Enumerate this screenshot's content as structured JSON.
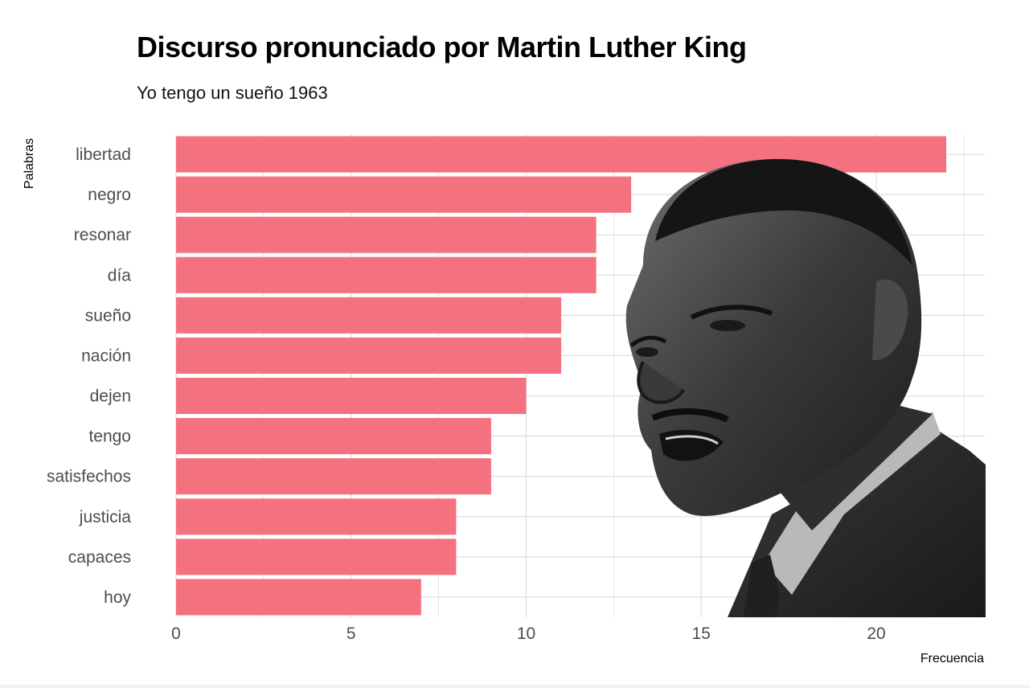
{
  "chart_data": {
    "type": "bar",
    "orientation": "horizontal",
    "title": "Discurso pronunciado por Martin Luther King",
    "subtitle": "Yo tengo un sueño 1963",
    "xlabel": "Frecuencia",
    "ylabel": "Palabras",
    "categories": [
      "libertad",
      "negro",
      "resonar",
      "día",
      "sueño",
      "nación",
      "dejen",
      "tengo",
      "satisfechos",
      "justicia",
      "capaces",
      "hoy"
    ],
    "values": [
      22,
      13,
      12,
      12,
      11,
      11,
      10,
      9,
      9,
      8,
      8,
      7
    ],
    "xlim": [
      0,
      23.1
    ],
    "xticks": [
      0,
      5,
      10,
      15,
      20
    ],
    "grid": true,
    "bar_color": "#f47280",
    "grid_color": "#dcdcdc"
  },
  "photo": {
    "subject": "portrait-photo"
  }
}
